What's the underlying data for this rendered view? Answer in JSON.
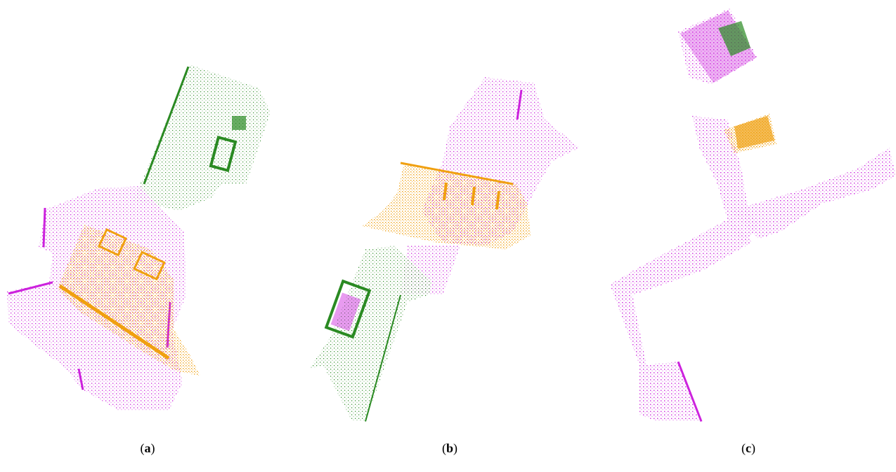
{
  "figure": {
    "panels": [
      {
        "id": "a",
        "caption_open": "(",
        "caption_letter": "a",
        "caption_close": ")"
      },
      {
        "id": "b",
        "caption_open": "(",
        "caption_letter": "b",
        "caption_close": ")"
      },
      {
        "id": "c",
        "caption_open": "(",
        "caption_letter": "c",
        "caption_close": ")"
      }
    ]
  },
  "colors": {
    "magenta": "#cc22dd",
    "orange": "#f0a010",
    "green": "#2a8a22",
    "background": "#ffffff"
  }
}
